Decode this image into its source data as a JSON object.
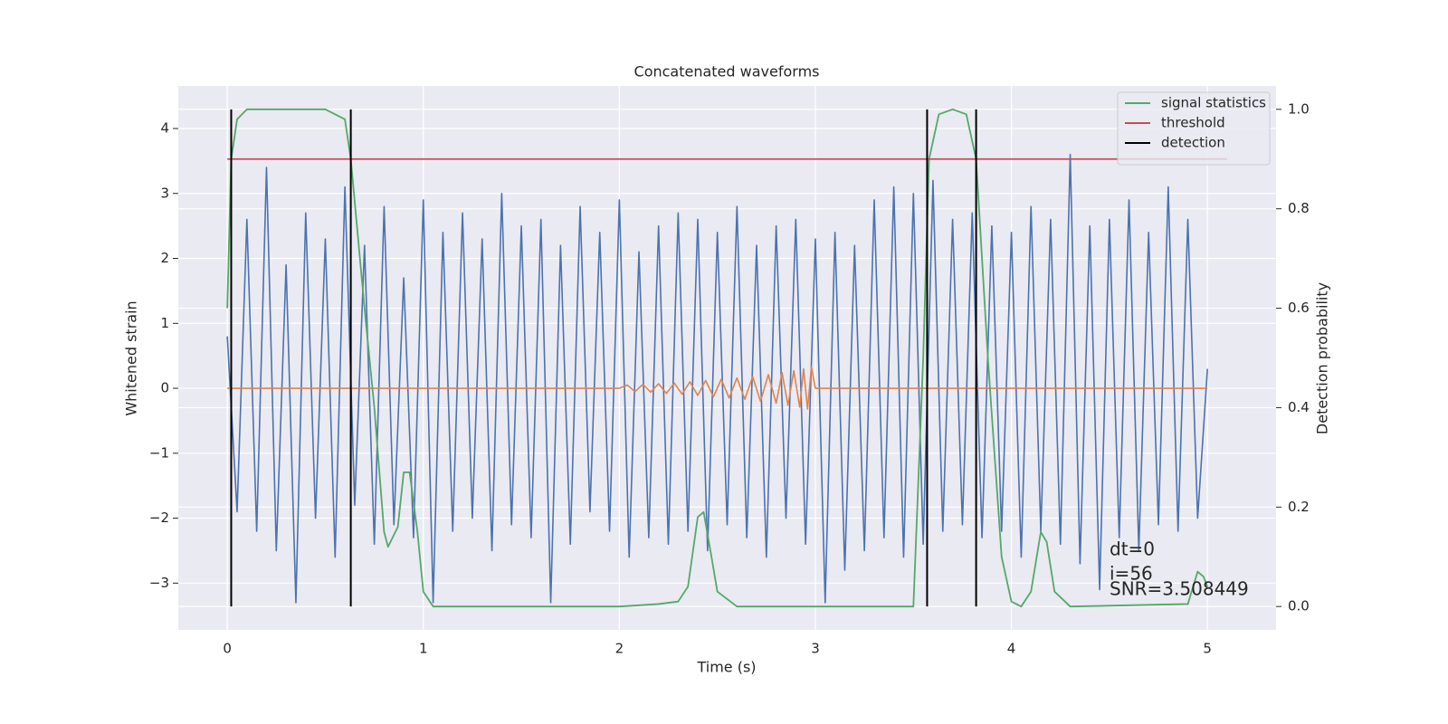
{
  "chart_data": {
    "type": "line",
    "title": "Concatenated waveforms",
    "xlabel": "Time (s)",
    "ylabel": "Whitened strain",
    "y2label": "Detection probability",
    "xlim": [
      -0.25,
      5.35
    ],
    "ylim": [
      -3.72,
      4.655
    ],
    "y2lim": [
      -0.047,
      1.047
    ],
    "xticks": [
      0,
      1,
      2,
      3,
      4,
      5
    ],
    "yticks": [
      {
        "value": -3,
        "label": "−3"
      },
      {
        "value": -2,
        "label": "−2"
      },
      {
        "value": -1,
        "label": "−1"
      },
      0,
      1,
      2,
      3,
      4
    ],
    "y2ticks": [
      {
        "value": 0,
        "label": "0.0"
      },
      {
        "value": 0.2,
        "label": "0.2"
      },
      {
        "value": 0.4,
        "label": "0.4"
      },
      {
        "value": 0.6,
        "label": "0.6"
      },
      {
        "value": 0.8,
        "label": "0.8"
      },
      {
        "value": 1,
        "label": "1.0"
      }
    ],
    "grid": true,
    "legend": "upper right",
    "annotations": [
      "dt=0",
      "i=56",
      "SNR=3.508449"
    ],
    "series": [
      {
        "color": "#4c72b0",
        "axis": "y",
        "x": [
          0,
          0.05,
          0.1,
          0.15,
          0.2,
          0.25,
          0.3,
          0.35,
          0.4,
          0.45,
          0.5,
          0.55,
          0.6,
          0.65,
          0.7,
          0.75,
          0.8,
          0.85,
          0.9,
          0.95,
          1,
          1.05,
          1.1,
          1.15,
          1.2,
          1.25,
          1.3,
          1.35,
          1.4,
          1.45,
          1.5,
          1.55,
          1.6,
          1.65,
          1.7,
          1.75,
          1.8,
          1.85,
          1.9,
          1.95,
          2,
          2.05,
          2.1,
          2.15,
          2.2,
          2.25,
          2.3,
          2.35,
          2.4,
          2.45,
          2.5,
          2.55,
          2.6,
          2.65,
          2.7,
          2.75,
          2.8,
          2.85,
          2.9,
          2.95,
          3,
          3.05,
          3.1,
          3.15,
          3.2,
          3.25,
          3.3,
          3.35,
          3.4,
          3.45,
          3.5,
          3.55,
          3.6,
          3.65,
          3.7,
          3.75,
          3.8,
          3.85,
          3.9,
          3.95,
          4,
          4.05,
          4.1,
          4.15,
          4.2,
          4.25,
          4.3,
          4.35,
          4.4,
          4.45,
          4.5,
          4.55,
          4.6,
          4.65,
          4.7,
          4.75,
          4.8,
          4.85,
          4.9,
          4.95,
          5
        ],
        "values": [
          0.8,
          -1.9,
          2.6,
          -2.2,
          3.4,
          -2.5,
          1.9,
          -3.3,
          2.7,
          -2.0,
          2.3,
          -2.6,
          3.1,
          -1.8,
          2.2,
          -2.4,
          2.8,
          -2.1,
          1.7,
          -2.3,
          2.9,
          -3.3,
          2.4,
          -2.2,
          2.7,
          -2.0,
          2.3,
          -2.5,
          3.0,
          -2.1,
          2.5,
          -2.3,
          2.6,
          -3.3,
          2.2,
          -2.4,
          2.8,
          -1.9,
          2.4,
          -2.2,
          2.9,
          -2.6,
          2.1,
          -2.3,
          2.5,
          -2.4,
          2.7,
          -2.2,
          2.6,
          -2.5,
          2.4,
          -2.1,
          2.8,
          -2.3,
          2.2,
          -2.6,
          2.5,
          -2.0,
          2.6,
          -2.4,
          2.3,
          -3.3,
          2.4,
          -2.8,
          2.2,
          -2.5,
          2.9,
          -2.3,
          3.1,
          -2.6,
          3.0,
          -2.4,
          3.2,
          -2.2,
          2.6,
          -2.1,
          2.7,
          -2.3,
          2.5,
          -2.2,
          2.4,
          -2.6,
          2.8,
          -2.2,
          2.6,
          -2.4,
          3.6,
          -2.7,
          2.5,
          -3.1,
          2.6,
          -2.3,
          2.9,
          -2.5,
          2.4,
          -2.1,
          3.1,
          -2.2,
          2.6,
          -2.0,
          0.3
        ]
      },
      {
        "color": "#dd8452",
        "axis": "y",
        "x": [
          0,
          2,
          2.04,
          2.08,
          2.12,
          2.16,
          2.2,
          2.24,
          2.28,
          2.32,
          2.36,
          2.4,
          2.44,
          2.48,
          2.52,
          2.56,
          2.6,
          2.64,
          2.68,
          2.72,
          2.76,
          2.8,
          2.83,
          2.86,
          2.89,
          2.92,
          2.94,
          2.96,
          2.98,
          3,
          5
        ],
        "values": [
          0,
          0,
          0.05,
          -0.05,
          0.06,
          -0.06,
          0.07,
          -0.08,
          0.08,
          -0.09,
          0.1,
          -0.11,
          0.12,
          -0.13,
          0.14,
          -0.15,
          0.16,
          -0.17,
          0.18,
          -0.2,
          0.21,
          -0.23,
          0.24,
          -0.26,
          0.27,
          -0.29,
          0.3,
          -0.32,
          0.33,
          0,
          0
        ]
      },
      {
        "name": "signal statistics",
        "color": "#55a868",
        "axis": "y2",
        "x": [
          0,
          0.02,
          0.05,
          0.1,
          0.5,
          0.6,
          0.63,
          0.7,
          0.75,
          0.8,
          0.82,
          0.87,
          0.9,
          0.93,
          0.97,
          1.0,
          1.05,
          1.5,
          2.0,
          2.2,
          2.3,
          2.35,
          2.4,
          2.43,
          2.47,
          2.5,
          2.6,
          3.5,
          3.55,
          3.58,
          3.63,
          3.7,
          3.77,
          3.82,
          3.88,
          3.95,
          4.0,
          4.05,
          4.1,
          4.15,
          4.18,
          4.22,
          4.3,
          4.9,
          4.95,
          4.98,
          5.0
        ],
        "values": [
          0.6,
          0.9,
          0.98,
          1.0,
          1.0,
          0.98,
          0.9,
          0.6,
          0.4,
          0.15,
          0.12,
          0.16,
          0.27,
          0.27,
          0.15,
          0.03,
          0.0,
          0.0,
          0.0,
          0.005,
          0.01,
          0.04,
          0.18,
          0.19,
          0.1,
          0.03,
          0.0,
          0.0,
          0.5,
          0.9,
          0.99,
          1.0,
          0.99,
          0.9,
          0.5,
          0.1,
          0.01,
          0.0,
          0.03,
          0.15,
          0.13,
          0.03,
          0.0,
          0.005,
          0.07,
          0.06,
          0.04
        ]
      },
      {
        "name": "threshold",
        "color": "#c44e52",
        "axis": "y2",
        "x": [
          0,
          5.1
        ],
        "values": [
          0.9,
          0.9
        ]
      },
      {
        "name": "detection",
        "color": "#000000",
        "axis": "y2",
        "type": "vline",
        "x": [
          0.02,
          0.63,
          3.57,
          3.82
        ],
        "span": [
          0,
          1
        ]
      }
    ]
  }
}
